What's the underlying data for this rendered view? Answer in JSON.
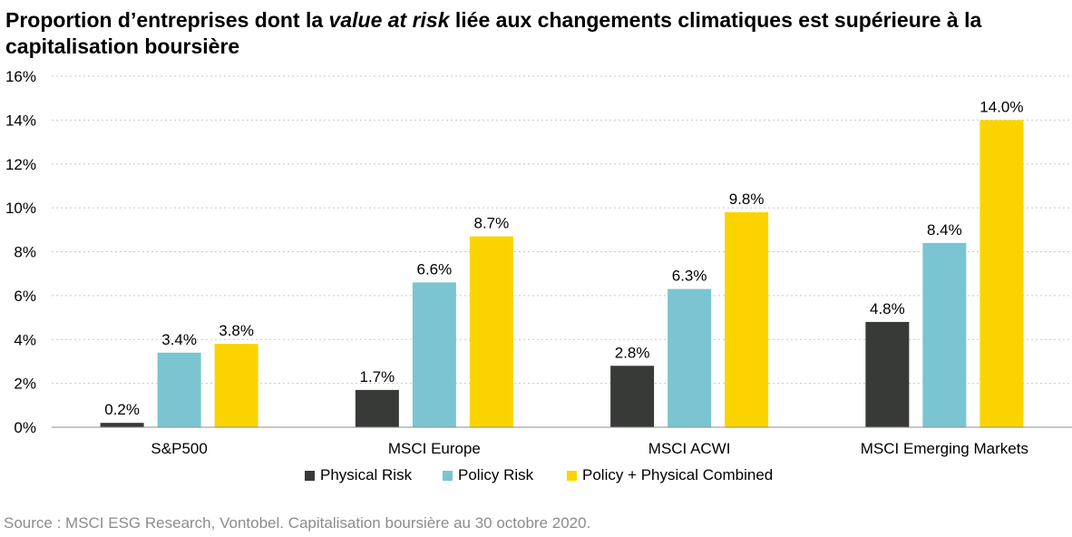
{
  "title": {
    "part1": "Proportion d’entreprises dont la ",
    "italic": "value at risk",
    "part2": " liée aux changements climatiques est supérieure à la capitalisation boursière"
  },
  "source": "Source : MSCI ESG Research, Vontobel. Capitalisation boursière au 30 octobre 2020.",
  "colors": {
    "physical": "#383a37",
    "policy": "#7ac5d1",
    "combined": "#fbd400",
    "grid": "#c8c8c8",
    "axis": "#8c8c8c",
    "source_text": "#8c8c8c"
  },
  "chart_data": {
    "type": "bar",
    "title": "Proportion d’entreprises dont la value at risk liée aux changements climatiques est supérieure à la capitalisation boursière",
    "categories": [
      "S&P500",
      "MSCI Europe",
      "MSCI ACWI",
      "MSCI Emerging Markets"
    ],
    "series": [
      {
        "name": "Physical Risk",
        "values": [
          0.2,
          1.7,
          2.8,
          4.8
        ],
        "color": "#383a37"
      },
      {
        "name": "Policy Risk",
        "values": [
          3.4,
          6.6,
          6.3,
          8.4
        ],
        "color": "#7ac5d1"
      },
      {
        "name": "Policy + Physical Combined",
        "values": [
          3.8,
          8.7,
          9.8,
          14.0
        ],
        "color": "#fbd400"
      }
    ],
    "data_labels": [
      [
        "0.2%",
        "1.7%",
        "2.8%",
        "4.8%"
      ],
      [
        "3.4%",
        "6.6%",
        "6.3%",
        "8.4%"
      ],
      [
        "3.8%",
        "8.7%",
        "9.8%",
        "14.0%"
      ]
    ],
    "y_ticks": [
      0,
      2,
      4,
      6,
      8,
      10,
      12,
      14,
      16
    ],
    "y_tick_labels": [
      "0%",
      "2%",
      "4%",
      "6%",
      "8%",
      "10%",
      "12%",
      "14%",
      "16%"
    ],
    "ylim": [
      0,
      16
    ],
    "xlabel": "",
    "ylabel": "",
    "grid": true,
    "grid_style": "dotted",
    "legend_position": "bottom"
  }
}
